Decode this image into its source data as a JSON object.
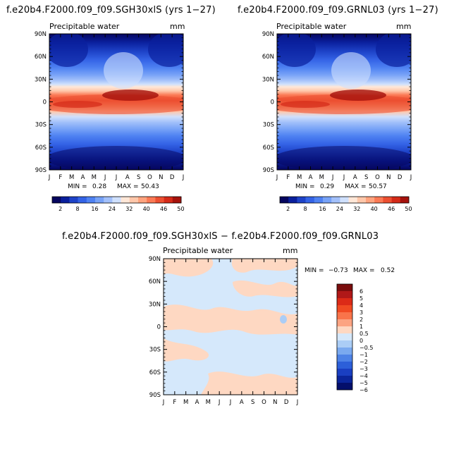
{
  "chart_data": [
    {
      "type": "heatmap",
      "title": "f.e20b4.F2000.f09_f09.SGH30xlS (yrs 1−27)",
      "subtitle": "Precipitable water",
      "units": "mm",
      "x_ticks": [
        "J",
        "F",
        "M",
        "A",
        "M",
        "J",
        "J",
        "A",
        "S",
        "O",
        "N",
        "D",
        "J"
      ],
      "y_ticks": [
        "90N",
        "60N",
        "30N",
        "0",
        "30S",
        "60S",
        "90S"
      ],
      "min_label": "MIN =",
      "min_value": "0.28",
      "max_label": "MAX =",
      "max_value": "50.43",
      "colorbar": [
        "2",
        "8",
        "16",
        "24",
        "32",
        "40",
        "46",
        "50"
      ]
    },
    {
      "type": "heatmap",
      "title": "f.e20b4.F2000.f09_f09.GRNL03 (yrs 1−27)",
      "subtitle": "Precipitable water",
      "units": "mm",
      "x_ticks": [
        "J",
        "F",
        "M",
        "A",
        "M",
        "J",
        "J",
        "A",
        "S",
        "O",
        "N",
        "D",
        "J"
      ],
      "y_ticks": [
        "90N",
        "60N",
        "30N",
        "0",
        "30S",
        "60S",
        "90S"
      ],
      "min_label": "MIN =",
      "min_value": "0.29",
      "max_label": "MAX =",
      "max_value": "50.57",
      "colorbar": [
        "2",
        "8",
        "16",
        "24",
        "32",
        "40",
        "46",
        "50"
      ]
    },
    {
      "type": "heatmap",
      "title": "f.e20b4.F2000.f09_f09.SGH30xlS − f.e20b4.F2000.f09_f09.GRNL03",
      "subtitle": "Precipitable water",
      "units": "mm",
      "x_ticks": [
        "J",
        "F",
        "M",
        "A",
        "M",
        "J",
        "J",
        "A",
        "S",
        "O",
        "N",
        "D",
        "J"
      ],
      "y_ticks": [
        "90N",
        "60N",
        "30N",
        "0",
        "30S",
        "60S",
        "90S"
      ],
      "min_label": "MIN =",
      "min_value": "−0.73",
      "max_label": "MAX =",
      "max_value": "0.52",
      "colorbar": [
        "6",
        "5",
        "4",
        "3",
        "2",
        "1",
        "0.5",
        "0",
        "−0.5",
        "−1",
        "−2",
        "−3",
        "−4",
        "−5",
        "−6"
      ]
    }
  ],
  "colors": {
    "abs_scale": [
      "#06065e",
      "#0a1f9c",
      "#1e43c8",
      "#3463e6",
      "#4f82f2",
      "#77a2f7",
      "#a2c0fa",
      "#cfe0fd",
      "#ffe7d7",
      "#ffc7aa",
      "#ffa37e",
      "#fb7a55",
      "#ec4f31",
      "#d42a18",
      "#a5120c"
    ],
    "diff_scale": [
      "#7a0d0d",
      "#b01818",
      "#dc2a17",
      "#f04a22",
      "#f9744a",
      "#fca482",
      "#fed8c2",
      "#d5e8fb",
      "#abcdf6",
      "#7aa9ef",
      "#4d82e6",
      "#2c5fd9",
      "#1a3fc2",
      "#0b259b",
      "#040f6b"
    ]
  }
}
